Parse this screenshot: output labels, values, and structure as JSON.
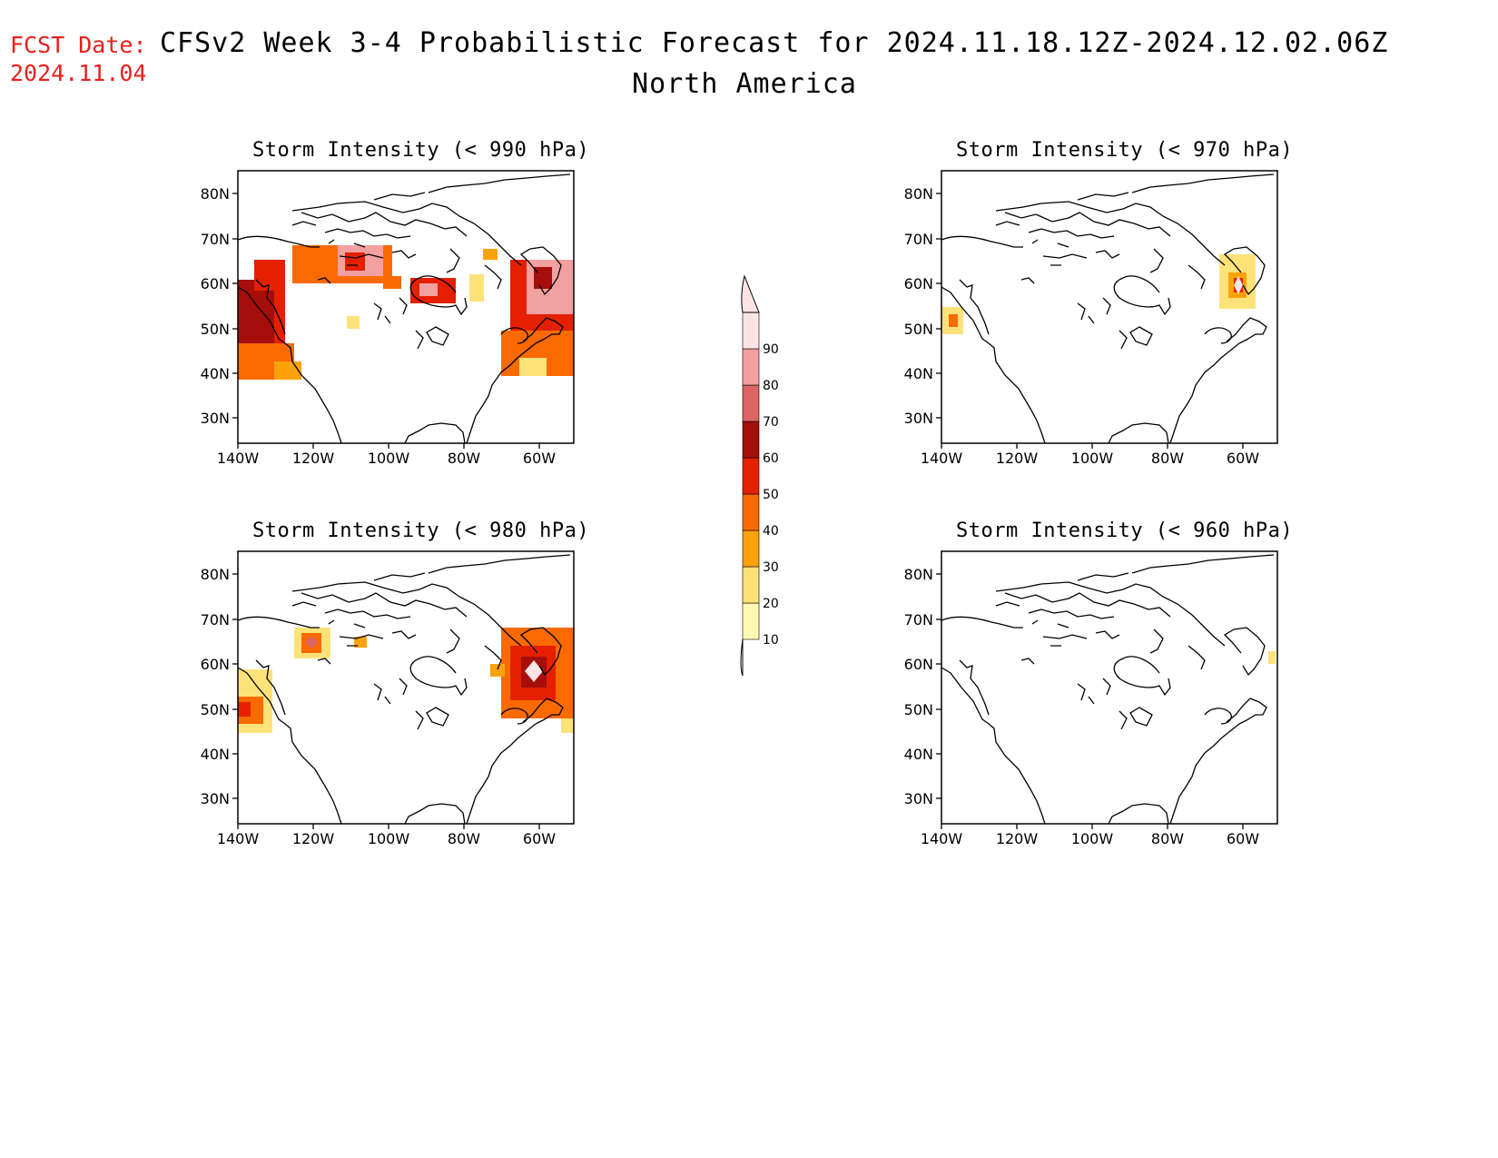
{
  "header": {
    "fcst_label": "FCST Date:",
    "fcst_date": "2024.11.04",
    "title_line1": "CFSv2 Week 3-4 Probabilistic Forecast for 2024.11.18.12Z-2024.12.02.06Z",
    "title_line2": "North America"
  },
  "panels": [
    {
      "id": "p990",
      "title": "Storm Intensity (< 990 hPa)"
    },
    {
      "id": "p970",
      "title": "Storm Intensity (< 970 hPa)"
    },
    {
      "id": "p980",
      "title": "Storm Intensity (< 980 hPa)"
    },
    {
      "id": "p960",
      "title": "Storm Intensity (< 960 hPa)"
    }
  ],
  "axes": {
    "lat_ticks": [
      "80N",
      "70N",
      "60N",
      "50N",
      "40N",
      "30N"
    ],
    "lon_ticks": [
      "140W",
      "120W",
      "100W",
      "80W",
      "60W"
    ]
  },
  "colorbar": {
    "levels": [
      "10",
      "20",
      "30",
      "40",
      "50",
      "60",
      "70",
      "80",
      "90"
    ],
    "colors": [
      "#fff9b4",
      "#fde27a",
      "#fba20b",
      "#fb6a00",
      "#e52000",
      "#a50e0a",
      "#dc6464",
      "#f2a0a0",
      "#fde4e4"
    ]
  }
}
